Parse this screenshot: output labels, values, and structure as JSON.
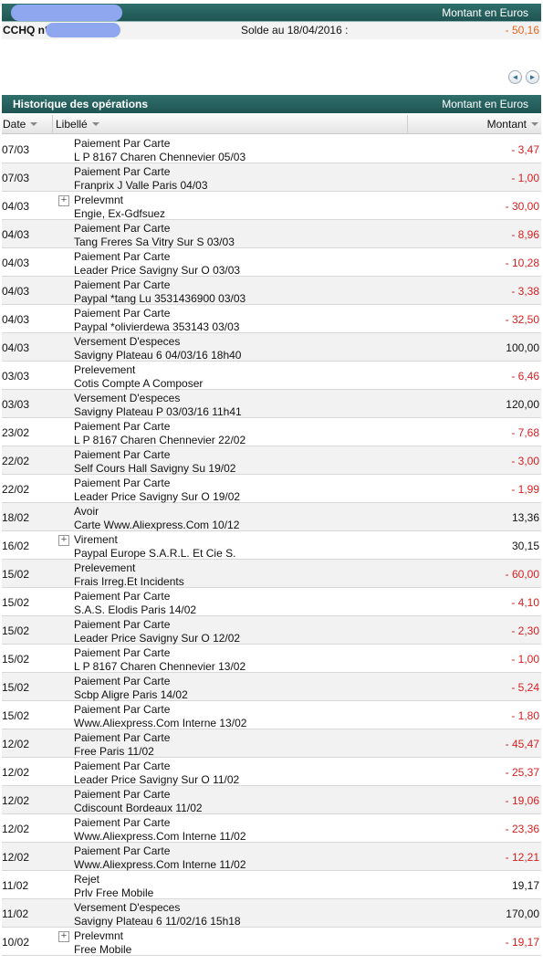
{
  "header": {
    "amount_label": "Montant en Euros",
    "account_label": "CCHQ n°",
    "solde_label": "Solde au 18/04/2016 :",
    "balance": "- 50,16",
    "balance_color": "#e8641e"
  },
  "pager": {
    "prev_icon": "◄",
    "next_icon": "►"
  },
  "history": {
    "title": "Historique des opérations",
    "amount_label": "Montant en Euros",
    "columns": {
      "date": "Date",
      "libelle": "Libellé",
      "montant": "Montant"
    }
  },
  "colors": {
    "negative": "#d42020",
    "header_bg": "#2f6f6c"
  },
  "operations": [
    {
      "date": "07/03",
      "line1": "Paiement Par Carte",
      "line2": "L P 8167 Charen Chennevier 05/03",
      "amount": "- 3,47",
      "negative": true,
      "expandable": false
    },
    {
      "date": "07/03",
      "line1": "Paiement Par Carte",
      "line2": "Franprix J Valle Paris 04/03",
      "amount": "- 1,00",
      "negative": true,
      "expandable": false
    },
    {
      "date": "04/03",
      "line1": "Prelevmnt",
      "line2": "Engie, Ex-Gdfsuez",
      "amount": "- 30,00",
      "negative": true,
      "expandable": true
    },
    {
      "date": "04/03",
      "line1": "Paiement Par Carte",
      "line2": "Tang Freres Sa Vitry Sur S 03/03",
      "amount": "- 8,96",
      "negative": true,
      "expandable": false
    },
    {
      "date": "04/03",
      "line1": "Paiement Par Carte",
      "line2": "Leader Price Savigny Sur O 03/03",
      "amount": "- 10,28",
      "negative": true,
      "expandable": false
    },
    {
      "date": "04/03",
      "line1": "Paiement Par Carte",
      "line2": "Paypal *tang Lu 3531436900 03/03",
      "amount": "- 3,38",
      "negative": true,
      "expandable": false
    },
    {
      "date": "04/03",
      "line1": "Paiement Par Carte",
      "line2": "Paypal *olivierdewa 353143 03/03",
      "amount": "- 32,50",
      "negative": true,
      "expandable": false
    },
    {
      "date": "04/03",
      "line1": "Versement D'especes",
      "line2": "Savigny Plateau 6 04/03/16 18h40",
      "amount": "100,00",
      "negative": false,
      "expandable": false
    },
    {
      "date": "03/03",
      "line1": "Prelevement",
      "line2": "Cotis Compte A Composer",
      "amount": "- 6,46",
      "negative": true,
      "expandable": false
    },
    {
      "date": "03/03",
      "line1": "Versement D'especes",
      "line2": "Savigny Plateau P 03/03/16 11h41",
      "amount": "120,00",
      "negative": false,
      "expandable": false
    },
    {
      "date": "23/02",
      "line1": "Paiement Par Carte",
      "line2": "L P 8167 Charen Chennevier 22/02",
      "amount": "- 7,68",
      "negative": true,
      "expandable": false
    },
    {
      "date": "22/02",
      "line1": "Paiement Par Carte",
      "line2": "Self Cours Hall Savigny Su 19/02",
      "amount": "- 3,00",
      "negative": true,
      "expandable": false
    },
    {
      "date": "22/02",
      "line1": "Paiement Par Carte",
      "line2": "Leader Price Savigny Sur O 19/02",
      "amount": "- 1,99",
      "negative": true,
      "expandable": false
    },
    {
      "date": "18/02",
      "line1": "Avoir",
      "line2": "Carte Www.Aliexpress.Com 10/12",
      "amount": "13,36",
      "negative": false,
      "expandable": false
    },
    {
      "date": "16/02",
      "line1": "Virement",
      "line2": "Paypal Europe S.A.R.L. Et Cie S.",
      "amount": "30,15",
      "negative": false,
      "expandable": true
    },
    {
      "date": "15/02",
      "line1": "Prelevement",
      "line2": "Frais Irreg.Et Incidents",
      "amount": "- 60,00",
      "negative": true,
      "expandable": false
    },
    {
      "date": "15/02",
      "line1": "Paiement Par Carte",
      "line2": "S.A.S. Elodis Paris 14/02",
      "amount": "- 4,10",
      "negative": true,
      "expandable": false
    },
    {
      "date": "15/02",
      "line1": "Paiement Par Carte",
      "line2": "Leader Price Savigny Sur O 12/02",
      "amount": "- 2,30",
      "negative": true,
      "expandable": false
    },
    {
      "date": "15/02",
      "line1": "Paiement Par Carte",
      "line2": "L P 8167 Charen Chennevier 13/02",
      "amount": "- 1,00",
      "negative": true,
      "expandable": false
    },
    {
      "date": "15/02",
      "line1": "Paiement Par Carte",
      "line2": "Scbp Aligre Paris 14/02",
      "amount": "- 5,24",
      "negative": true,
      "expandable": false
    },
    {
      "date": "15/02",
      "line1": "Paiement Par Carte",
      "line2": "Www.Aliexpress.Com Interne 13/02",
      "amount": "- 1,80",
      "negative": true,
      "expandable": false
    },
    {
      "date": "12/02",
      "line1": "Paiement Par Carte",
      "line2": "Free Paris 11/02",
      "amount": "- 45,47",
      "negative": true,
      "expandable": false
    },
    {
      "date": "12/02",
      "line1": "Paiement Par Carte",
      "line2": "Leader Price Savigny Sur O 11/02",
      "amount": "- 25,37",
      "negative": true,
      "expandable": false
    },
    {
      "date": "12/02",
      "line1": "Paiement Par Carte",
      "line2": "Cdiscount Bordeaux 11/02",
      "amount": "- 19,06",
      "negative": true,
      "expandable": false
    },
    {
      "date": "12/02",
      "line1": "Paiement Par Carte",
      "line2": "Www.Aliexpress.Com Interne 11/02",
      "amount": "- 23,36",
      "negative": true,
      "expandable": false
    },
    {
      "date": "12/02",
      "line1": "Paiement Par Carte",
      "line2": "Www.Aliexpress.Com Interne 11/02",
      "amount": "- 12,21",
      "negative": true,
      "expandable": false
    },
    {
      "date": "11/02",
      "line1": "Rejet",
      "line2": "Prlv Free Mobile",
      "amount": "19,17",
      "negative": false,
      "expandable": false
    },
    {
      "date": "11/02",
      "line1": "Versement D'especes",
      "line2": "Savigny Plateau 6 11/02/16 15h18",
      "amount": "170,00",
      "negative": false,
      "expandable": false
    },
    {
      "date": "10/02",
      "line1": "Prelevmnt",
      "line2": "Free Mobile",
      "amount": "- 19,17",
      "negative": true,
      "expandable": true
    }
  ]
}
